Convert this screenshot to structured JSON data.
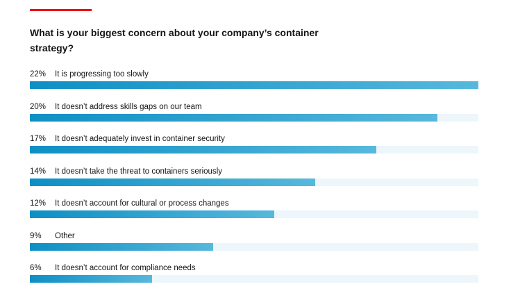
{
  "title": "What is your biggest concern about your company’s container strategy?",
  "colors": {
    "accent": "#ee0000",
    "bar_start": "#0e8fc4",
    "bar_end": "#57b8dc",
    "track": "#ecf6fb"
  },
  "chart_data": {
    "type": "bar",
    "orientation": "horizontal",
    "title": "What is your biggest concern about your company’s container strategy?",
    "xlim": [
      0,
      22
    ],
    "grid": false,
    "items": [
      {
        "value_label": "22%",
        "value": 22,
        "label": "It is progressing too slowly"
      },
      {
        "value_label": "20%",
        "value": 20,
        "label": "It doesn’t address skills gaps on our team"
      },
      {
        "value_label": "17%",
        "value": 17,
        "label": "It doesn’t adequately invest in container security"
      },
      {
        "value_label": "14%",
        "value": 14,
        "label": "It doesn’t take the threat to containers seriously"
      },
      {
        "value_label": "12%",
        "value": 12,
        "label": "It doesn’t account for cultural or process changes"
      },
      {
        "value_label": "9%",
        "value": 9,
        "label": "Other"
      },
      {
        "value_label": "6%",
        "value": 6,
        "label": "It doesn’t account for compliance needs"
      }
    ]
  }
}
